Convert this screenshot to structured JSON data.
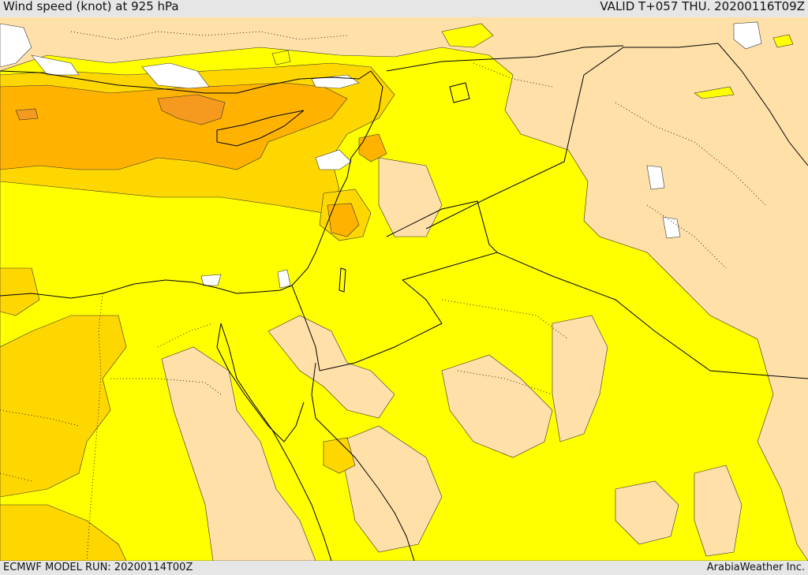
{
  "header": {
    "title": "Wind speed (knot) at 925 hPa",
    "valid": "VALID T+057 THU. 20200116T09Z"
  },
  "footer": {
    "model_run": "ECMWF MODEL RUN: 20200114T00Z",
    "credit": "ArabiaWeather Inc."
  },
  "colors": {
    "band_low": "#ffe0a8",
    "band_mid": "#ffff00",
    "band_high": "#ffd700",
    "band_top": "#ffb300",
    "band_peak": "#f59a1e",
    "no_data": "#ffffff",
    "border": "#000000"
  }
}
